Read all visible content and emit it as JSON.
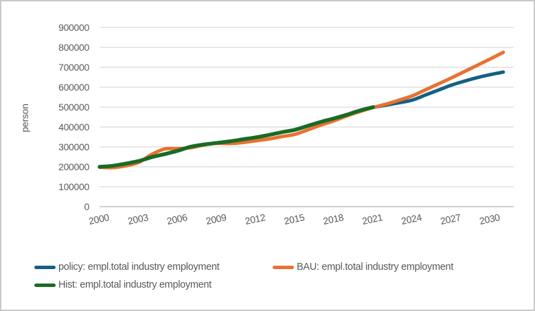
{
  "chart_data": {
    "type": "line",
    "title": "",
    "xlabel": "",
    "ylabel": "person",
    "ylim": [
      0,
      900000
    ],
    "xlim": [
      2000,
      2031.8
    ],
    "y_ticks": [
      0,
      100000,
      200000,
      300000,
      400000,
      500000,
      600000,
      700000,
      800000,
      900000
    ],
    "x_ticks": [
      2000,
      2003,
      2006,
      2009,
      2012,
      2015,
      2018,
      2021,
      2024,
      2027,
      2030
    ],
    "grid": "horizontal",
    "legend_position": "bottom-left-two-rows",
    "x_tick_label_rotation_deg": -12,
    "series": [
      {
        "name": "policy: empl.total industry employment",
        "color": "#156082",
        "stroke_width": 5,
        "x": [
          2000,
          2001,
          2002,
          2003,
          2004,
          2005,
          2006,
          2007,
          2008,
          2009,
          2010,
          2011,
          2012,
          2013,
          2014,
          2015,
          2016,
          2017,
          2018,
          2019,
          2020,
          2021,
          2022,
          2023,
          2024,
          2025,
          2026,
          2027,
          2028,
          2029,
          2030,
          2031
        ],
        "values": [
          200000,
          204000,
          215000,
          228000,
          248000,
          263000,
          280000,
          300000,
          312000,
          320000,
          328000,
          338000,
          348000,
          360000,
          374000,
          386000,
          406000,
          426000,
          443000,
          462000,
          482000,
          498000,
          510000,
          522000,
          535000,
          560000,
          585000,
          610000,
          630000,
          648000,
          663000,
          676000
        ]
      },
      {
        "name": "BAU: empl.total industry employment",
        "color": "#E97132",
        "stroke_width": 5,
        "x": [
          2000,
          2001,
          2002,
          2003,
          2004,
          2005,
          2006,
          2007,
          2008,
          2009,
          2010,
          2011,
          2012,
          2013,
          2014,
          2015,
          2016,
          2017,
          2018,
          2019,
          2020,
          2021,
          2022,
          2023,
          2024,
          2025,
          2026,
          2027,
          2028,
          2029,
          2030,
          2031
        ],
        "values": [
          198000,
          196000,
          205000,
          222000,
          262000,
          290000,
          291000,
          296000,
          310000,
          318000,
          317000,
          322000,
          331000,
          340000,
          352000,
          363000,
          386000,
          410000,
          431000,
          456000,
          478000,
          498000,
          515000,
          535000,
          556000,
          586000,
          616000,
          646000,
          678000,
          710000,
          742000,
          775000
        ]
      },
      {
        "name": "Hist: empl.total industry employment",
        "color": "#196B24",
        "stroke_width": 5.5,
        "x": [
          2000,
          2001,
          2002,
          2003,
          2004,
          2005,
          2006,
          2007,
          2008,
          2009,
          2010,
          2011,
          2012,
          2013,
          2014,
          2015,
          2016,
          2017,
          2018,
          2019,
          2020,
          2021
        ],
        "values": [
          200000,
          205000,
          216000,
          229000,
          249000,
          264000,
          281000,
          301000,
          312000,
          320000,
          328000,
          338000,
          348000,
          360000,
          374000,
          386000,
          406000,
          426000,
          443000,
          462000,
          483000,
          500000
        ]
      }
    ]
  },
  "colors": {
    "tick_label": "#595959",
    "gridline": "#d9d9d9",
    "axis_line": "#bfbfbf",
    "background": "#ffffff",
    "frame_border": "#c9c9c9"
  }
}
